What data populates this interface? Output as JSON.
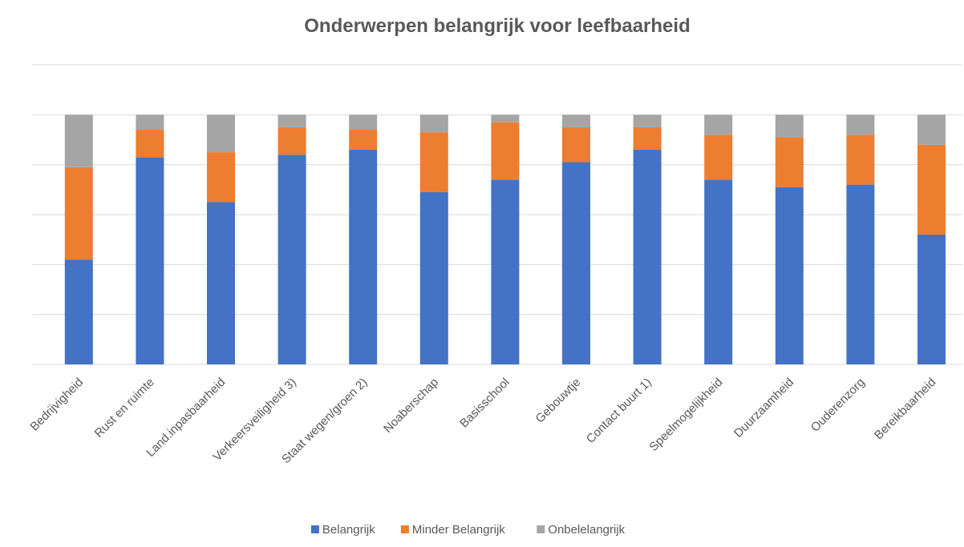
{
  "chart_data": {
    "type": "stacked_bar",
    "title": "Onderwerpen belangrijk voor leefbaarheid",
    "categories": [
      "Bedrijvigheid",
      "Rust en ruimte",
      "Land.inpasbaarheid",
      "Verkeersveiligheid 3)",
      "Staat wegen/groen 2)",
      "Noaberschap",
      "Basisschool",
      "Gebouwtje",
      "Contact buurt 1)",
      "Speelmogelijkheid",
      "Duurzaamheid",
      "Ouderenzorg",
      "Bereikbaarheid"
    ],
    "series": [
      {
        "name": "Belangrijk",
        "color": "#4472c4",
        "values": [
          42,
          83,
          65,
          84,
          86,
          69,
          74,
          81,
          86,
          74,
          71,
          72,
          52
        ]
      },
      {
        "name": "Minder Belangrijk",
        "color": "#ed7d31",
        "values": [
          37,
          11,
          20,
          11,
          8,
          24,
          23,
          14,
          9,
          18,
          20,
          20,
          36
        ]
      },
      {
        "name": "Onbelelangrijk",
        "color": "#a5a5a5",
        "values": [
          21,
          6,
          15,
          5,
          6,
          7,
          3,
          5,
          5,
          8,
          9,
          8,
          12
        ]
      }
    ],
    "ylim": [
      0,
      120
    ],
    "yticks": [
      0,
      20,
      40,
      60,
      80,
      100,
      120
    ],
    "grid": true,
    "legend": "bottom"
  }
}
